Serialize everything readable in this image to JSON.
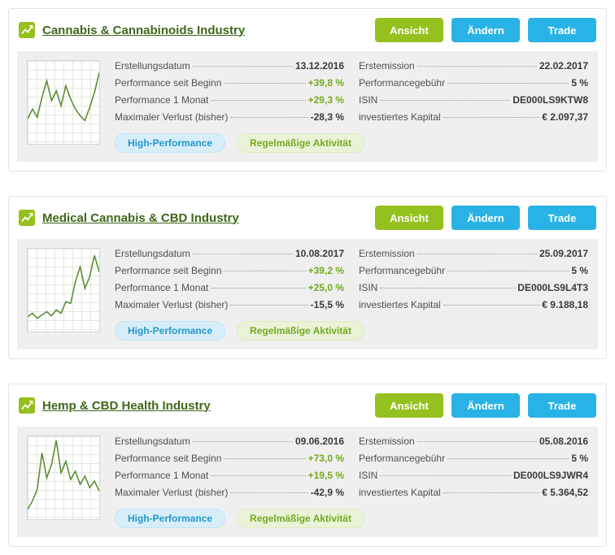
{
  "colors": {
    "green_button": "#95c11e",
    "blue_button": "#29b2e5",
    "title_green": "#3f671b",
    "positive_value": "#76aa1f",
    "dark_value": "#3a3a3a",
    "sparkline": "#5b8f34",
    "badge_blue_text": "#2496cc",
    "badge_green_text": "#76a922"
  },
  "buttons": {
    "ansicht": "Ansicht",
    "aendern": "Ändern",
    "trade": "Trade"
  },
  "labels": {
    "erstellungsdatum": "Erstellungsdatum",
    "performance_seit_beginn": "Performance seit Beginn",
    "performance_1_monat": "Performance 1 Monat",
    "maximaler_verlust": "Maximaler Verlust (bisher)",
    "erstemission": "Erstemission",
    "performancegebuehr": "Performancegebühr",
    "isin": "ISIN",
    "investiertes_kapital": "investiertes Kapital"
  },
  "badges": {
    "high_performance": "High-Performance",
    "regelmaessige_aktivitaet": "Regelmäßige Aktivität"
  },
  "cards": [
    {
      "title": "Cannabis & Cannabinoids Industry",
      "erstellungsdatum": "13.12.2016",
      "performance_seit_beginn": "+39,8 %",
      "performance_1_monat": "+29,3 %",
      "maximaler_verlust": "-28,3 %",
      "erstemission": "22.02.2017",
      "performancegebuehr": "5 %",
      "isin": "DE000LS9KTW8",
      "investiertes_kapital": "€ 2.097,37",
      "sparkline": [
        30,
        42,
        32,
        56,
        76,
        52,
        64,
        46,
        70,
        54,
        42,
        34,
        28,
        44,
        62,
        86
      ]
    },
    {
      "title": "Medical Cannabis & CBD Industry",
      "erstellungsdatum": "10.08.2017",
      "performance_seit_beginn": "+39,2 %",
      "performance_1_monat": "+25,0 %",
      "maximaler_verlust": "-15,5 %",
      "erstemission": "25.09.2017",
      "performancegebuehr": "5 %",
      "isin": "DE000LS9L4T3",
      "investiertes_kapital": "€ 9.188,18",
      "sparkline": [
        18,
        22,
        16,
        20,
        24,
        19,
        26,
        22,
        36,
        34,
        60,
        78,
        52,
        66,
        92,
        72
      ]
    },
    {
      "title": "Hemp & CBD Health Industry",
      "erstellungsdatum": "09.06.2016",
      "performance_seit_beginn": "+73,0 %",
      "performance_1_monat": "+19,5 %",
      "maximaler_verlust": "-42,9 %",
      "erstemission": "05.08.2016",
      "performancegebuehr": "5 %",
      "isin": "DE000LS9JWR4",
      "investiertes_kapital": "€ 5.364,52",
      "sparkline": [
        12,
        22,
        36,
        80,
        50,
        66,
        95,
        56,
        70,
        48,
        58,
        42,
        52,
        38,
        46,
        34
      ]
    }
  ]
}
